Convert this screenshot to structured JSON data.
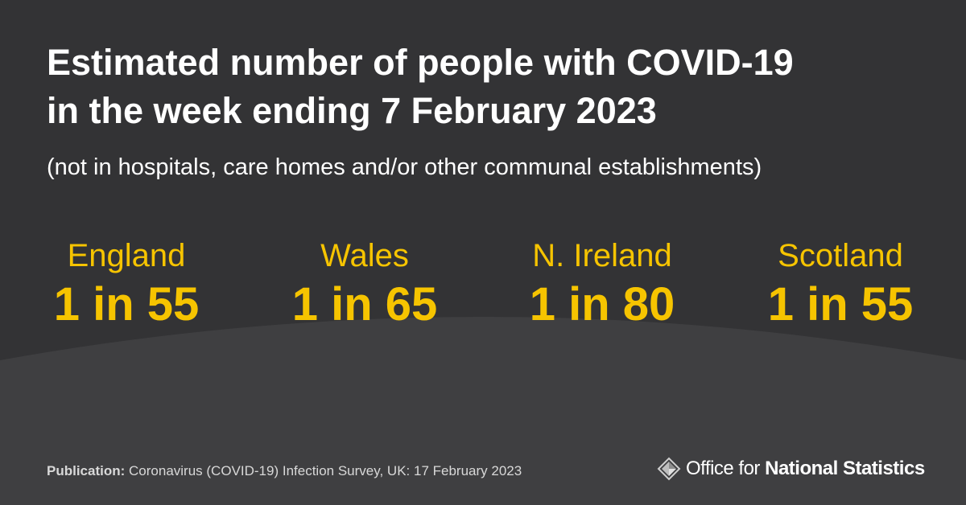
{
  "title": [
    "Estimated number of people with COVID-19",
    "in the week ending 7 February 2023"
  ],
  "subtitle": "(not in hospitals, care homes and/or other communal establishments)",
  "regions": [
    {
      "name": "England",
      "value": "1 in 55"
    },
    {
      "name": "Wales",
      "value": "1 in 65"
    },
    {
      "name": "N. Ireland",
      "value": "1 in 80"
    },
    {
      "name": "Scotland",
      "value": "1 in 55"
    }
  ],
  "footer": {
    "label": "Publication:",
    "text": "Coronavirus (COVID-19) Infection Survey, UK: 17 February 2023"
  },
  "logo": {
    "light": "Office for",
    "bold": "National Statistics"
  }
}
